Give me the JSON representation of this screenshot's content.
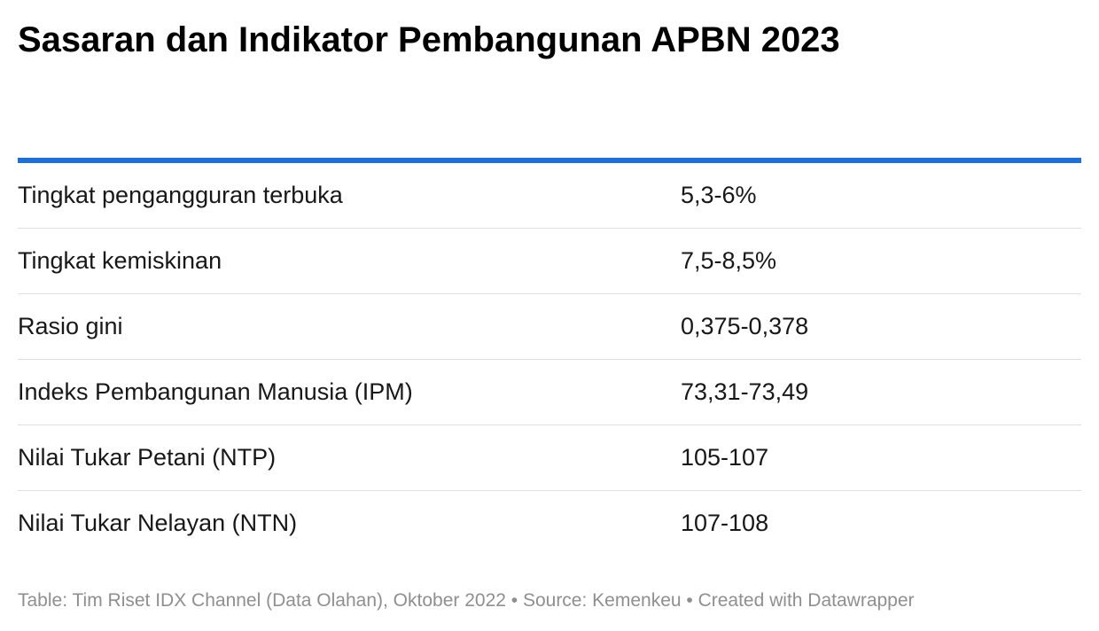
{
  "title": "Sasaran dan Indikator Pembangunan APBN 2023",
  "accent_color": "#1f6fd9",
  "chart_data": {
    "type": "table",
    "title": "Sasaran dan Indikator Pembangunan APBN 2023",
    "rows": [
      {
        "label": "Tingkat pengangguran terbuka",
        "value": "5,3-6%"
      },
      {
        "label": "Tingkat kemiskinan",
        "value": "7,5-8,5%"
      },
      {
        "label": "Rasio gini",
        "value": "0,375-0,378"
      },
      {
        "label": "Indeks Pembangunan Manusia (IPM)",
        "value": "73,31-73,49"
      },
      {
        "label": "Nilai Tukar Petani (NTP)",
        "value": "105-107"
      },
      {
        "label": "Nilai Tukar Nelayan (NTN)",
        "value": "107-108"
      }
    ]
  },
  "footer": "Table: Tim Riset IDX Channel (Data Olahan), Oktober 2022 • Source: Kemenkeu • Created with Datawrapper"
}
